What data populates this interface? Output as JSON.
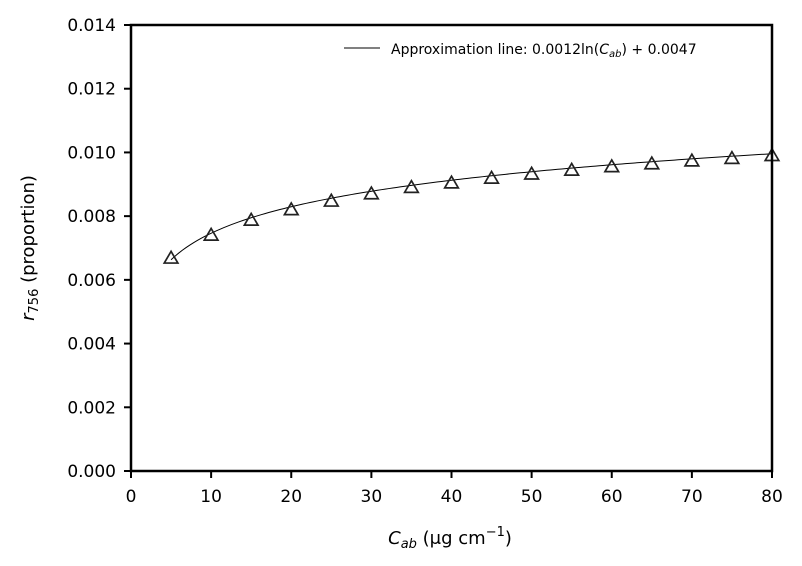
{
  "chart_data": {
    "type": "scatter",
    "xlabel": {
      "main": "C",
      "sub": "ab",
      "unit_prefix": " (μg cm",
      "unit_sup": "−1",
      "unit_suffix": ")"
    },
    "ylabel": {
      "main": "r",
      "sub": "756",
      "suffix": " (proportion)"
    },
    "xlim": [
      0,
      80
    ],
    "ylim": [
      0,
      0.014
    ],
    "x_ticks": [
      "0",
      "10",
      "20",
      "30",
      "40",
      "50",
      "60",
      "70",
      "80"
    ],
    "y_ticks": [
      "0.000",
      "0.002",
      "0.004",
      "0.006",
      "0.008",
      "0.010",
      "0.012",
      "0.014"
    ],
    "grid": false,
    "legend_position": "top-right",
    "points": {
      "x": [
        5,
        10,
        15,
        20,
        25,
        30,
        35,
        40,
        45,
        50,
        55,
        60,
        65,
        70,
        75,
        80
      ],
      "y": [
        0.00668,
        0.0074,
        0.00787,
        0.0082,
        0.00847,
        0.0087,
        0.0089,
        0.00904,
        0.00919,
        0.00932,
        0.00944,
        0.00955,
        0.00964,
        0.00973,
        0.00981,
        0.0099
      ]
    },
    "fit_line": {
      "legend_prefix": "Approximation line: 0.0012ln(",
      "legend_var_main": "C",
      "legend_var_sub": "ab",
      "legend_suffix": ") + 0.0047",
      "a": 0.0012,
      "b": 0.0047,
      "x_range": [
        5,
        80
      ]
    }
  }
}
